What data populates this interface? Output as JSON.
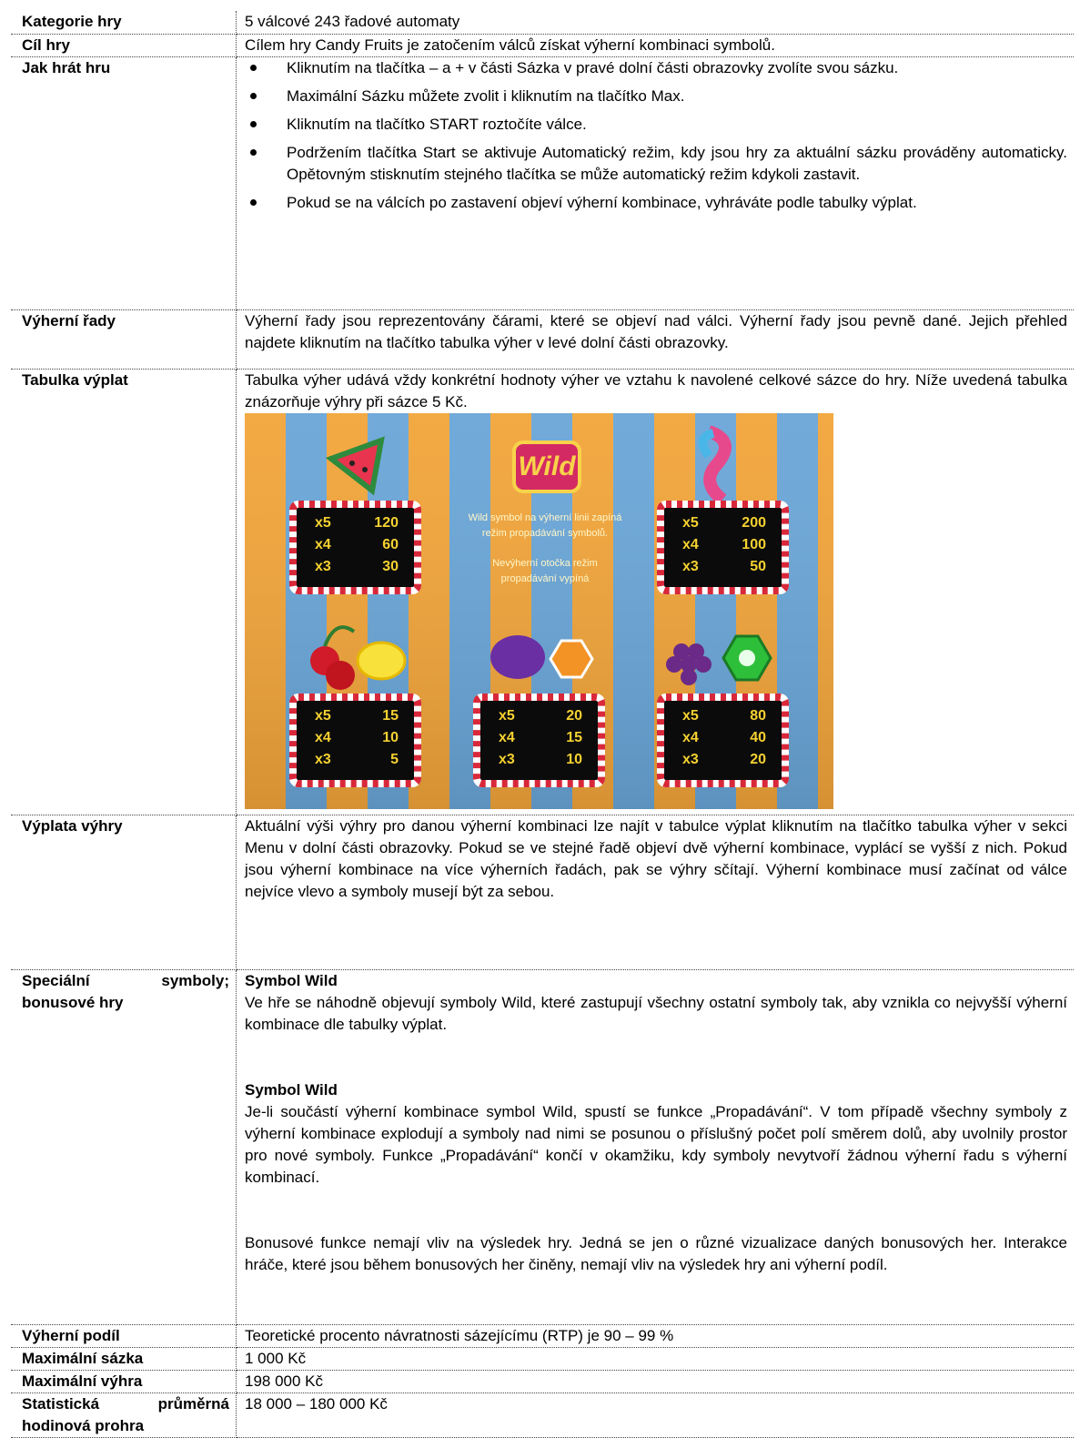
{
  "table": {
    "rows": [
      {
        "label": "Kategorie hry",
        "text": "5 válcové 243 řadové automaty"
      },
      {
        "label": "Cíl hry",
        "text": "Cílem hry Candy Fruits je zatočením válců získat výherní kombinaci symbolů."
      },
      {
        "label": "Jak hrát hru",
        "bullets": [
          "Kliknutím na tlačítka – a + v části Sázka v pravé dolní části obrazovky zvolíte svou sázku.",
          "Maximální Sázku můžete zvolit i kliknutím na tlačítko Max.",
          "Kliknutím na tlačítko START roztočíte válce.",
          "Podržením tlačítka Start se aktivuje Automatický režim, kdy jsou hry za aktuální sázku prováděny automaticky. Opětovným stisknutím stejného tlačítka se může automatický režim kdykoli zastavit.",
          "Pokud se na válcích po zastavení objeví výherní kombinace, vyhráváte podle tabulky výplat."
        ]
      },
      {
        "label": "Výherní řady",
        "text": "Výherní řady jsou reprezentovány čárami, které se objeví nad válci. Výherní řady jsou pevně dané. Jejich přehled najdete kliknutím na tlačítko tabulka výher v levé dolní části obrazovky."
      },
      {
        "label": "Tabulka výplat",
        "text": "Tabulka výher udává vždy konkrétní hodnoty výher ve vztahu k navolené celkové sázce do hry. Níže uvedená tabulka znázorňuje výhry při sázce 5 Kč.",
        "paytable": {
          "wild_label": "Wild",
          "wild_text": [
            "Wild symbol na výherní linii zapíná",
            "režim propadávání symbolů."
          ],
          "wild_note": [
            "Nevýherní otočka režim",
            "propadávání vypíná"
          ],
          "boards": [
            {
              "rows": [
                {
                  "multiplier": "x5",
                  "value": 120
                },
                {
                  "multiplier": "x4",
                  "value": 60
                },
                {
                  "multiplier": "x3",
                  "value": 30
                }
              ]
            },
            {
              "rows": [
                {
                  "multiplier": "x5",
                  "value": 200
                },
                {
                  "multiplier": "x4",
                  "value": 100
                },
                {
                  "multiplier": "x3",
                  "value": 50
                }
              ]
            },
            {
              "rows": [
                {
                  "multiplier": "x5",
                  "value": 15
                },
                {
                  "multiplier": "x4",
                  "value": 10
                },
                {
                  "multiplier": "x3",
                  "value": 5
                }
              ]
            },
            {
              "rows": [
                {
                  "multiplier": "x5",
                  "value": 20
                },
                {
                  "multiplier": "x4",
                  "value": 15
                },
                {
                  "multiplier": "x3",
                  "value": 10
                }
              ]
            },
            {
              "rows": [
                {
                  "multiplier": "x5",
                  "value": 80
                },
                {
                  "multiplier": "x4",
                  "value": 40
                },
                {
                  "multiplier": "x3",
                  "value": 20
                }
              ]
            }
          ]
        }
      },
      {
        "label": "Výplata výhry",
        "text": "Aktuální výši výhry pro danou výherní kombinaci lze najít v tabulce výplat kliknutím na tlačítko tabulka výher v sekci Menu v dolní části obrazovky. Pokud se ve stejné řadě objeví dvě výherní kombinace, vyplácí se vyšší z nich. Pokud jsou výherní kombinace na více výherních řadách, pak se výhry sčítají. Výherní kombinace musí začínat od válce nejvíce vlevo a symboly musejí být za sebou."
      },
      {
        "label": "Speciální symboly; bonusové hry",
        "sections": [
          {
            "heading": "Symbol Wild",
            "text": "Ve hře se náhodně objevují symboly Wild, které zastupují všechny ostatní symboly tak, aby vznikla co nejvyšší výherní kombinace dle tabulky výplat."
          },
          {
            "heading": "Symbol Wild",
            "text": "Je-li součástí výherní kombinace symbol Wild, spustí se funkce „Propadávání“. V tom případě všechny symboly z výherní kombinace explodují a symboly nad nimi se posunou o příslušný počet polí směrem dolů, aby uvolnily prostor pro nové symboly. Funkce „Propadávání“ končí v okamžiku, kdy symboly nevytvoří žádnou výherní řadu s výherní kombinací."
          },
          {
            "text": "Bonusové funkce nemají vliv na výsledek hry. Jedná se jen o různé vizualizace daných bonusových her. Interakce hráče, které jsou během bonusových her činěny, nemají vliv na výsledek hry ani výherní podíl."
          }
        ]
      },
      {
        "label": "Výherní podíl",
        "text": "Teoretické procento návratnosti sázejícímu (RTP) je 90 – 99 %"
      },
      {
        "label": "Maximální sázka",
        "text": "1 000 Kč"
      },
      {
        "label": "Maximální výhra",
        "text": "198 000 Kč"
      },
      {
        "label": "Statistická průměrná hodinová prohra",
        "text": "18 000 – 180 000 Kč"
      }
    ]
  }
}
